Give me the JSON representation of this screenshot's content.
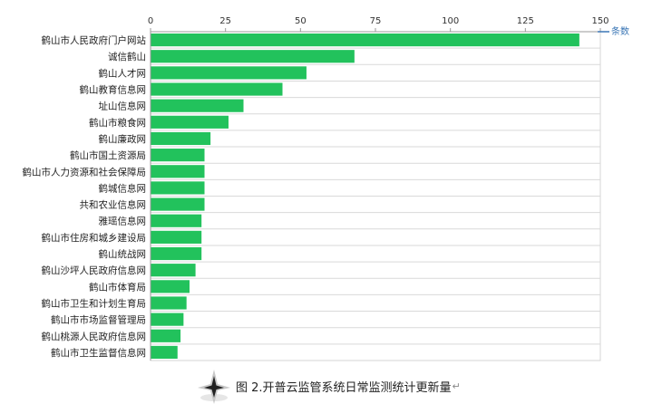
{
  "chart_data": {
    "type": "bar",
    "orientation": "horizontal",
    "categories": [
      "鹤山市人民政府门户网站",
      "诚信鹤山",
      "鹤山人才网",
      "鹤山教育信息网",
      "址山信息网",
      "鹤山市粮食网",
      "鹤山廉政网",
      "鹤山市国土资源局",
      "鹤山市人力资源和社会保障局",
      "鹤城信息网",
      "共和农业信息网",
      "雅瑶信息网",
      "鹤山市住房和城乡建设局",
      "鹤山统战网",
      "鹤山沙坪人民政府信息网",
      "鹤山市体育局",
      "鹤山市卫生和计划生育局",
      "鹤山市市场监督管理局",
      "鹤山桃源人民政府信息网",
      "鹤山市卫生监督信息网"
    ],
    "values": [
      143,
      68,
      52,
      44,
      31,
      26,
      20,
      18,
      18,
      18,
      18,
      17,
      17,
      17,
      15,
      13,
      12,
      11,
      10,
      9
    ],
    "xlim": [
      0,
      150
    ],
    "xticks": [
      "0",
      "25",
      "50",
      "75",
      "100",
      "125",
      "150"
    ],
    "x_axis_position": "top",
    "unit_label": "条数",
    "grid": "horizontal",
    "bar_color": "#22c25c",
    "unit_color": "#3a76b5"
  },
  "caption": {
    "text": "图 2.开普云监管系统日常监测统计更新量",
    "return_mark": "↵"
  }
}
